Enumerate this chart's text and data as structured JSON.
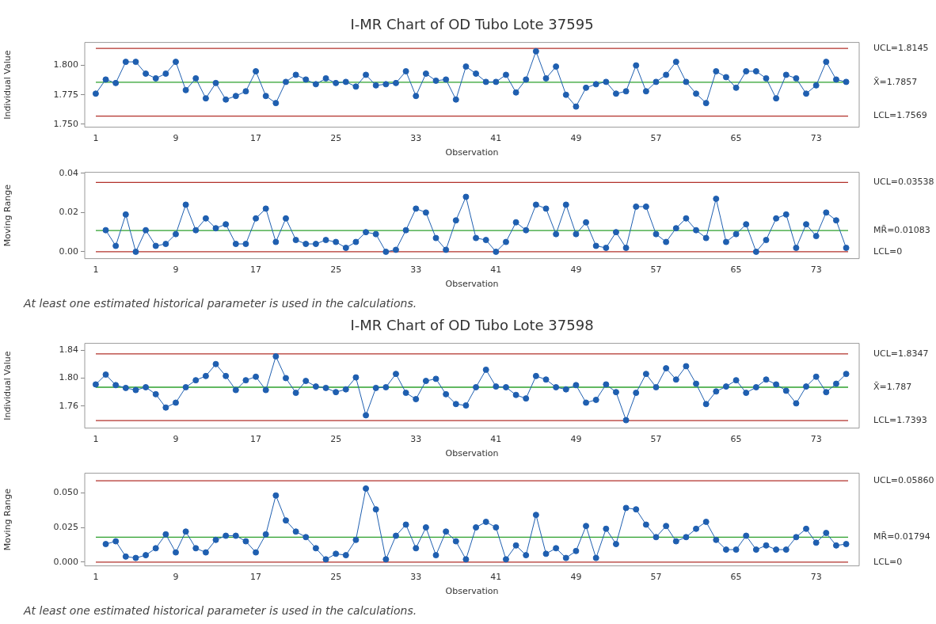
{
  "chart_data": [
    {
      "type": "line",
      "title": "I-MR Chart of OD Tubo Lote 37595",
      "xlabel": "Observation",
      "ylabel": "Individual Value",
      "marker": "circle",
      "line_style": "solid",
      "x": [
        1,
        2,
        3,
        4,
        5,
        6,
        7,
        8,
        9,
        10,
        11,
        12,
        13,
        14,
        15,
        16,
        17,
        18,
        19,
        20,
        21,
        22,
        23,
        24,
        25,
        26,
        27,
        28,
        29,
        30,
        31,
        32,
        33,
        34,
        35,
        36,
        37,
        38,
        39,
        40,
        41,
        42,
        43,
        44,
        45,
        46,
        47,
        48,
        49,
        50,
        51,
        52,
        53,
        54,
        55,
        56,
        57,
        58,
        59,
        60,
        61,
        62,
        63,
        64,
        65,
        66,
        67,
        68,
        69,
        70,
        71,
        72,
        73,
        74,
        75,
        76
      ],
      "series": [
        {
          "color": "#1f5fb0",
          "values": [
            1.776,
            1.788,
            1.785,
            1.803,
            1.803,
            1.793,
            1.789,
            1.793,
            1.803,
            1.779,
            1.789,
            1.772,
            1.785,
            1.771,
            1.774,
            1.778,
            1.795,
            1.774,
            1.768,
            1.786,
            1.792,
            1.788,
            1.784,
            1.789,
            1.785,
            1.786,
            1.782,
            1.792,
            1.783,
            1.784,
            1.785,
            1.795,
            1.774,
            1.793,
            1.787,
            1.788,
            1.771,
            1.799,
            1.793,
            1.786,
            1.786,
            1.792,
            1.777,
            1.788,
            1.812,
            1.789,
            1.799,
            1.775,
            1.765,
            1.781,
            1.784,
            1.786,
            1.776,
            1.778,
            1.8,
            1.778,
            1.786,
            1.792,
            1.803,
            1.786,
            1.776,
            1.768,
            1.795,
            1.79,
            1.781,
            1.795,
            1.795,
            1.789,
            1.772,
            1.792,
            1.789,
            1.776,
            1.783,
            1.803,
            1.788,
            1.786
          ]
        }
      ],
      "xlim": [
        -0.1,
        77.3
      ],
      "xticks": [
        1,
        9,
        17,
        25,
        33,
        41,
        49,
        57,
        65,
        73
      ],
      "ylim": [
        1.7475,
        1.8195
      ],
      "yticks": [
        {
          "value": 1.75,
          "label": "1.750"
        },
        {
          "value": 1.775,
          "label": "1.775"
        },
        {
          "value": 1.8,
          "label": "1.800"
        }
      ],
      "ref_lines": [
        {
          "axis": "y",
          "value": 1.8145,
          "label": "UCL=1.8145",
          "color": "#b2312a"
        },
        {
          "axis": "y",
          "value": 1.7857,
          "label": "X̄=1.7857",
          "color": "#2ca02c"
        },
        {
          "axis": "y",
          "value": 1.7569,
          "label": "LCL=1.7569",
          "color": "#b2312a"
        }
      ]
    },
    {
      "type": "line",
      "xlabel": "Observation",
      "ylabel": "Moving Range",
      "marker": "circle",
      "line_style": "solid",
      "x": [
        2,
        3,
        4,
        5,
        6,
        7,
        8,
        9,
        10,
        11,
        12,
        13,
        14,
        15,
        16,
        17,
        18,
        19,
        20,
        21,
        22,
        23,
        24,
        25,
        26,
        27,
        28,
        29,
        30,
        31,
        32,
        33,
        34,
        35,
        36,
        37,
        38,
        39,
        40,
        41,
        42,
        43,
        44,
        45,
        46,
        47,
        48,
        49,
        50,
        51,
        52,
        53,
        54,
        55,
        56,
        57,
        58,
        59,
        60,
        61,
        62,
        63,
        64,
        65,
        66,
        67,
        68,
        69,
        70,
        71,
        72,
        73,
        74,
        75,
        76
      ],
      "series": [
        {
          "color": "#1f5fb0",
          "values": [
            0.011,
            0.003,
            0.019,
            0.0,
            0.011,
            0.003,
            0.004,
            0.009,
            0.024,
            0.011,
            0.017,
            0.012,
            0.014,
            0.004,
            0.004,
            0.017,
            0.022,
            0.005,
            0.017,
            0.006,
            0.004,
            0.004,
            0.006,
            0.005,
            0.002,
            0.005,
            0.01,
            0.009,
            0.0,
            0.001,
            0.011,
            0.022,
            0.02,
            0.007,
            0.001,
            0.016,
            0.028,
            0.007,
            0.006,
            0.0,
            0.005,
            0.015,
            0.011,
            0.024,
            0.022,
            0.009,
            0.024,
            0.009,
            0.015,
            0.003,
            0.002,
            0.01,
            0.002,
            0.023,
            0.023,
            0.009,
            0.005,
            0.012,
            0.017,
            0.011,
            0.007,
            0.027,
            0.005,
            0.009,
            0.014,
            0.0,
            0.006,
            0.017,
            0.019,
            0.002,
            0.014,
            0.008,
            0.02,
            0.016,
            0.002
          ]
        }
      ],
      "xlim": [
        -0.1,
        77.3
      ],
      "xticks": [
        1,
        9,
        17,
        25,
        33,
        41,
        49,
        57,
        65,
        73
      ],
      "ylim": [
        -0.0035,
        0.0405
      ],
      "yticks": [
        {
          "value": 0,
          "label": "0.00"
        },
        {
          "value": 0.02,
          "label": "0.02"
        },
        {
          "value": 0.04,
          "label": "0.04"
        }
      ],
      "ref_lines": [
        {
          "axis": "y",
          "value": 0.03538,
          "label": "UCL=0.03538",
          "color": "#b2312a"
        },
        {
          "axis": "y",
          "value": 0.01083,
          "label": "MR̄=0.01083",
          "color": "#2ca02c"
        },
        {
          "axis": "y",
          "value": 0,
          "label": "LCL=0",
          "color": "#b2312a"
        }
      ],
      "annotations": [
        "At least one estimated historical parameter is used in the calculations."
      ]
    },
    {
      "type": "line",
      "title": "I-MR Chart of OD Tubo Lote 37598",
      "xlabel": "Observation",
      "ylabel": "Individual Value",
      "marker": "circle",
      "line_style": "solid",
      "x": [
        1,
        2,
        3,
        4,
        5,
        6,
        7,
        8,
        9,
        10,
        11,
        12,
        13,
        14,
        15,
        16,
        17,
        18,
        19,
        20,
        21,
        22,
        23,
        24,
        25,
        26,
        27,
        28,
        29,
        30,
        31,
        32,
        33,
        34,
        35,
        36,
        37,
        38,
        39,
        40,
        41,
        42,
        43,
        44,
        45,
        46,
        47,
        48,
        49,
        50,
        51,
        52,
        53,
        54,
        55,
        56,
        57,
        58,
        59,
        60,
        61,
        62,
        63,
        64,
        65,
        66,
        67,
        68,
        69,
        70,
        71,
        72,
        73,
        74,
        75,
        76
      ],
      "series": [
        {
          "color": "#1f5fb0",
          "values": [
            1.791,
            1.805,
            1.79,
            1.786,
            1.783,
            1.787,
            1.777,
            1.758,
            1.765,
            1.787,
            1.797,
            1.803,
            1.82,
            1.803,
            1.783,
            1.797,
            1.802,
            1.783,
            1.831,
            1.8,
            1.779,
            1.796,
            1.788,
            1.786,
            1.78,
            1.784,
            1.801,
            1.747,
            1.786,
            1.787,
            1.806,
            1.779,
            1.77,
            1.796,
            1.799,
            1.777,
            1.763,
            1.761,
            1.787,
            1.812,
            1.788,
            1.787,
            1.776,
            1.771,
            1.803,
            1.798,
            1.787,
            1.784,
            1.79,
            1.765,
            1.769,
            1.791,
            1.78,
            1.74,
            1.779,
            1.806,
            1.787,
            1.814,
            1.798,
            1.817,
            1.792,
            1.763,
            1.781,
            1.788,
            1.797,
            1.779,
            1.787,
            1.798,
            1.791,
            1.782,
            1.764,
            1.788,
            1.802,
            1.78,
            1.792,
            1.806
          ]
        }
      ],
      "xlim": [
        -0.1,
        77.3
      ],
      "xticks": [
        1,
        9,
        17,
        25,
        33,
        41,
        49,
        57,
        65,
        73
      ],
      "ylim": [
        1.7287,
        1.8496
      ],
      "yticks": [
        {
          "value": 1.76,
          "label": "1.76"
        },
        {
          "value": 1.8,
          "label": "1.80"
        },
        {
          "value": 1.84,
          "label": "1.84"
        }
      ],
      "ref_lines": [
        {
          "axis": "y",
          "value": 1.8347,
          "label": "UCL=1.8347",
          "color": "#b2312a"
        },
        {
          "axis": "y",
          "value": 1.787,
          "label": "X̄=1.787",
          "color": "#2ca02c"
        },
        {
          "axis": "y",
          "value": 1.7393,
          "label": "LCL=1.7393",
          "color": "#b2312a"
        }
      ]
    },
    {
      "type": "line",
      "xlabel": "Observation",
      "ylabel": "Moving Range",
      "marker": "circle",
      "line_style": "solid",
      "x": [
        2,
        3,
        4,
        5,
        6,
        7,
        8,
        9,
        10,
        11,
        12,
        13,
        14,
        15,
        16,
        17,
        18,
        19,
        20,
        21,
        22,
        23,
        24,
        25,
        26,
        27,
        28,
        29,
        30,
        31,
        32,
        33,
        34,
        35,
        36,
        37,
        38,
        39,
        40,
        41,
        42,
        43,
        44,
        45,
        46,
        47,
        48,
        49,
        50,
        51,
        52,
        53,
        54,
        55,
        56,
        57,
        58,
        59,
        60,
        61,
        62,
        63,
        64,
        65,
        66,
        67,
        68,
        69,
        70,
        71,
        72,
        73,
        74,
        75,
        76
      ],
      "series": [
        {
          "color": "#1f5fb0",
          "values": [
            0.013,
            0.015,
            0.004,
            0.003,
            0.005,
            0.01,
            0.02,
            0.007,
            0.022,
            0.01,
            0.007,
            0.016,
            0.019,
            0.019,
            0.015,
            0.007,
            0.02,
            0.048,
            0.03,
            0.022,
            0.018,
            0.01,
            0.002,
            0.006,
            0.005,
            0.016,
            0.053,
            0.038,
            0.002,
            0.019,
            0.027,
            0.01,
            0.025,
            0.005,
            0.022,
            0.015,
            0.002,
            0.025,
            0.029,
            0.025,
            0.002,
            0.012,
            0.005,
            0.034,
            0.006,
            0.01,
            0.003,
            0.008,
            0.026,
            0.003,
            0.024,
            0.013,
            0.039,
            0.038,
            0.027,
            0.018,
            0.026,
            0.015,
            0.018,
            0.024,
            0.029,
            0.016,
            0.009,
            0.009,
            0.019,
            0.009,
            0.012,
            0.009,
            0.009,
            0.018,
            0.024,
            0.014,
            0.021,
            0.012,
            0.013
          ]
        }
      ],
      "xlim": [
        -0.1,
        77.3
      ],
      "xticks": [
        1,
        9,
        17,
        25,
        33,
        41,
        49,
        57,
        65,
        73
      ],
      "ylim": [
        -0.0027,
        0.064
      ],
      "yticks": [
        {
          "value": 0,
          "label": "0.000"
        },
        {
          "value": 0.025,
          "label": "0.025"
        },
        {
          "value": 0.05,
          "label": "0.050"
        }
      ],
      "ref_lines": [
        {
          "axis": "y",
          "value": 0.0586,
          "label": "UCL=0.05860",
          "color": "#b2312a"
        },
        {
          "axis": "y",
          "value": 0.01794,
          "label": "MR̄=0.01794",
          "color": "#2ca02c"
        },
        {
          "axis": "y",
          "value": 0,
          "label": "LCL=0",
          "color": "#b2312a"
        }
      ],
      "annotations": [
        "At least one estimated historical parameter is used in the calculations."
      ]
    }
  ]
}
